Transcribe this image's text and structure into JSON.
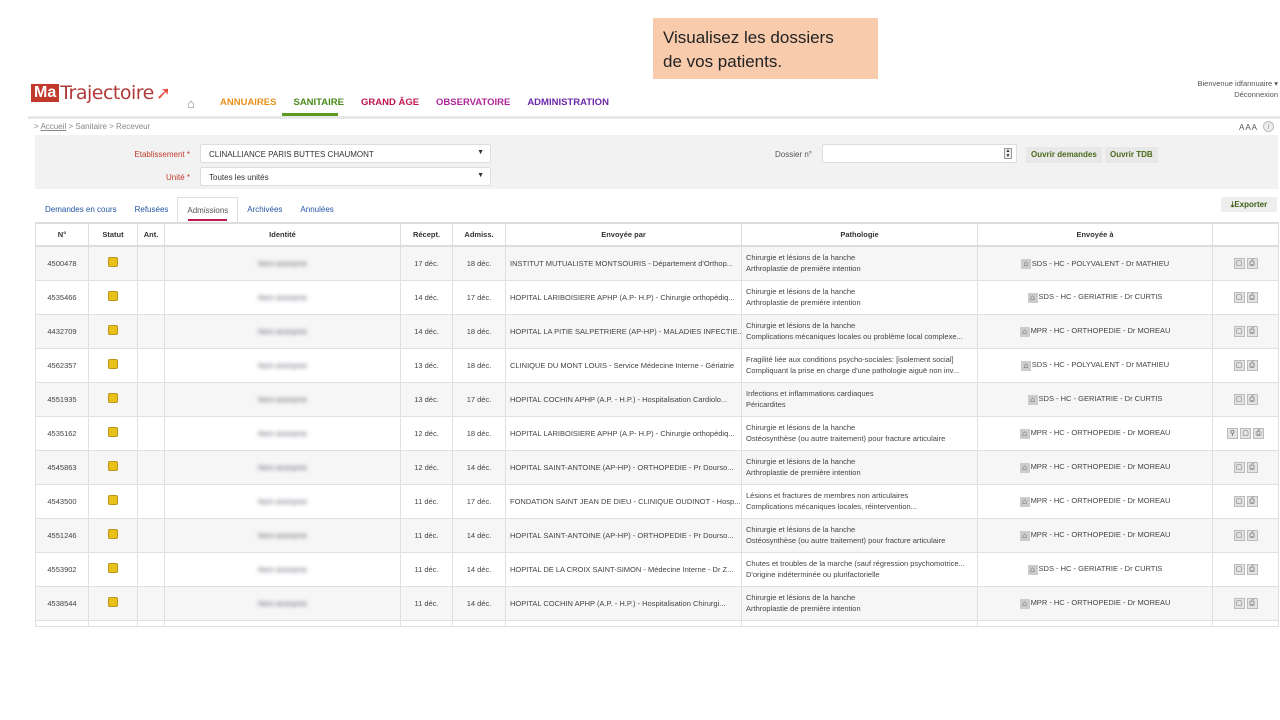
{
  "callout": {
    "line1": "Visualisez les dossiers",
    "line2": "de vos patients."
  },
  "logo": {
    "ma": "Ma",
    "rest": "Trajectoire"
  },
  "nav": [
    {
      "label": "ANNUAIRES",
      "color": "#e8901c"
    },
    {
      "label": "SANITAIRE",
      "color": "#4a8a1a"
    },
    {
      "label": "GRAND ÂGE",
      "color": "#c0174d"
    },
    {
      "label": "OBSERVATOIRE",
      "color": "#b0279a"
    },
    {
      "label": "ADMINISTRATION",
      "color": "#6a2aa8"
    }
  ],
  "user": {
    "welcome": "Bienvenue idfannuaire ▾",
    "logout": "Déconnexion"
  },
  "breadcrumb": {
    "home": "Accueil",
    "rest": " > Sanitaire > Receveur"
  },
  "font_size": "AAA",
  "filters": {
    "etab_label": "Etablissement *",
    "etab_value": "CLINALLIANCE PARIS BUTTES CHAUMONT",
    "unite_label": "Unité *",
    "unite_value": "Toutes les unités",
    "dossier_label": "Dossier n°",
    "dossier_value": "",
    "open_requests": "Ouvrir demandes",
    "open_tdb": "Ouvrir TDB"
  },
  "tabs": [
    "Demandes en cours",
    "Refusées",
    "Admissions",
    "Archivées",
    "Annulées"
  ],
  "active_tab": "Admissions",
  "export_label": "Exporter",
  "table": {
    "headers": [
      "N°",
      "Statut",
      "Ant.",
      "Identité",
      "Récept.",
      "Admiss.",
      "Envoyée par",
      "Pathologie",
      "Envoyée à",
      ""
    ],
    "rows": [
      {
        "n": "4500478",
        "id": "Nom anonyme",
        "rec": "17 déc.",
        "adm": "18 déc.",
        "par": "INSTITUT MUTUALISTE MONTSOURIS - Département d'Orthop...",
        "p1": "Chirurgie et lésions de la hanche",
        "p2": "Arthroplastie de première intention",
        "a": "SDS - HC - POLYVALENT - Dr MATHIEU",
        "attach": false
      },
      {
        "n": "4535466",
        "id": "Nom anonyme",
        "rec": "14 déc.",
        "adm": "17 déc.",
        "par": "HOPITAL LARIBOISIERE APHP (A.P- H.P) - Chirurgie orthopédiq...",
        "p1": "Chirurgie et lésions de la hanche",
        "p2": "Arthroplastie de première intention",
        "a": "SDS - HC - GERIATRIE - Dr CURTIS",
        "attach": false
      },
      {
        "n": "4432709",
        "id": "Nom anonyme",
        "rec": "14 déc.",
        "adm": "18 déc.",
        "par": "HOPITAL LA PITIE SALPETRIERE (AP-HP) - MALADIES INFECTIE...",
        "p1": "Chirurgie et lésions de la hanche",
        "p2": "Complications mécaniques locales ou problème local complexe...",
        "a": "MPR - HC - ORTHOPEDIE - Dr MOREAU",
        "attach": false
      },
      {
        "n": "4562357",
        "id": "Nom anonyme",
        "rec": "13 déc.",
        "adm": "18 déc.",
        "par": "CLINIQUE DU MONT LOUIS - Service Médecine Interne - Gériatrie",
        "p1": "Fragilité liée aux conditions psycho-sociales: [isolement social]",
        "p2": "Compliquant la prise en charge d'une pathologie aiguë non inv...",
        "a": "SDS - HC - POLYVALENT - Dr MATHIEU",
        "attach": false
      },
      {
        "n": "4551935",
        "id": "Nom anonyme",
        "rec": "13 déc.",
        "adm": "17 déc.",
        "par": "HOPITAL COCHIN APHP (A.P. - H.P.) - Hospitalisation Cardiolo...",
        "p1": "Infections et inflammations cardiaques",
        "p2": "Péricardites",
        "a": "SDS - HC - GERIATRIE - Dr CURTIS",
        "attach": false
      },
      {
        "n": "4535162",
        "id": "Nom anonyme",
        "rec": "12 déc.",
        "adm": "18 déc.",
        "par": "HOPITAL LARIBOISIERE APHP (A.P- H.P) - Chirurgie orthopédiq...",
        "p1": "Chirurgie et lésions de la hanche",
        "p2": "Ostéosynthèse (ou autre traitement) pour fracture articulaire",
        "a": "MPR - HC - ORTHOPEDIE - Dr MOREAU",
        "attach": true
      },
      {
        "n": "4545863",
        "id": "Nom anonyme",
        "rec": "12 déc.",
        "adm": "14 déc.",
        "par": "HOPITAL SAINT-ANTOINE (AP-HP) - ORTHOPEDIE - Pr Dourso...",
        "p1": "Chirurgie et lésions de la hanche",
        "p2": "Arthroplastie de première intention",
        "a": "MPR - HC - ORTHOPEDIE - Dr MOREAU",
        "attach": false
      },
      {
        "n": "4543500",
        "id": "Nom anonyme",
        "rec": "11 déc.",
        "adm": "17 déc.",
        "par": "FONDATION SAINT JEAN DE DIEU - CLINIQUE OUDINOT - Hosp...",
        "p1": "Lésions et fractures de membres non articulaires",
        "p2": "Complications mécaniques locales, réintervention...",
        "a": "MPR - HC - ORTHOPEDIE - Dr MOREAU",
        "attach": false
      },
      {
        "n": "4551246",
        "id": "Nom anonyme",
        "rec": "11 déc.",
        "adm": "14 déc.",
        "par": "HOPITAL SAINT-ANTOINE (AP-HP) - ORTHOPEDIE - Pr Dourso...",
        "p1": "Chirurgie et lésions de la hanche",
        "p2": "Ostéosynthèse (ou autre traitement) pour fracture articulaire",
        "a": "MPR - HC - ORTHOPEDIE - Dr MOREAU",
        "attach": false
      },
      {
        "n": "4553902",
        "id": "Nom anonyme",
        "rec": "11 déc.",
        "adm": "14 déc.",
        "par": "HOPITAL DE LA CROIX SAINT-SIMON - Médecine Interne - Dr Z...",
        "p1": "Chutes et troubles de la marche (sauf régression psychomotrice...",
        "p2": "D'origine indéterminée ou plurifactorielle",
        "a": "SDS - HC - GERIATRIE - Dr CURTIS",
        "attach": false
      },
      {
        "n": "4538544",
        "id": "Nom anonyme",
        "rec": "11 déc.",
        "adm": "14 déc.",
        "par": "HOPITAL COCHIN APHP (A.P. - H.P.) - Hospitalisation Chirurgi...",
        "p1": "Chirurgie et lésions de la hanche",
        "p2": "Arthroplastie de première intention",
        "a": "MPR - HC - ORTHOPEDIE - Dr MOREAU",
        "attach": false
      }
    ]
  }
}
